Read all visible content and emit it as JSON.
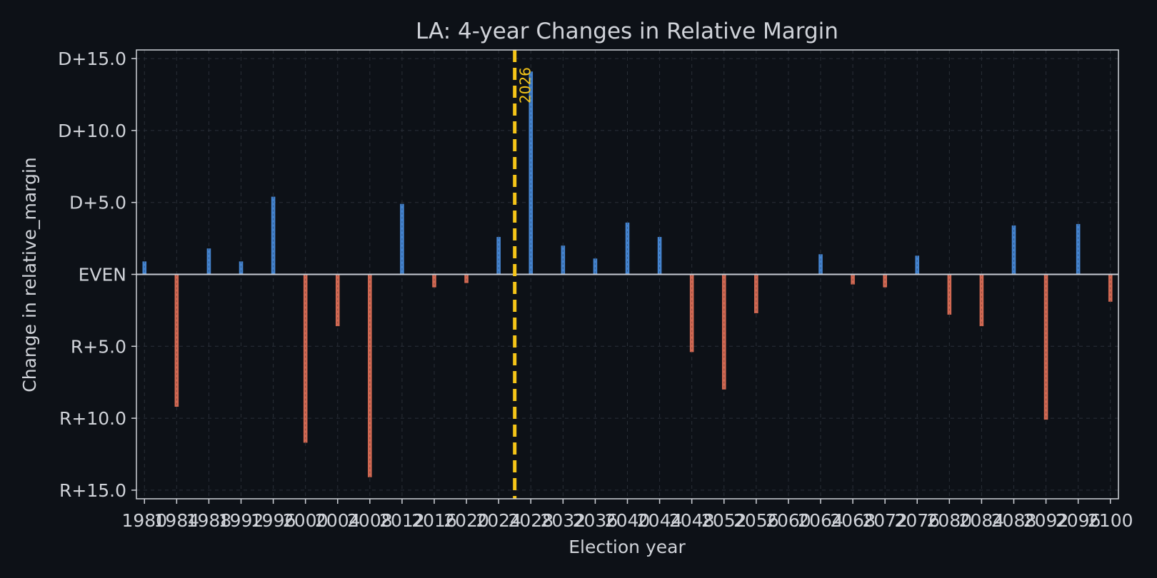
{
  "chart_data": {
    "type": "bar",
    "title": "LA: 4-year Changes in Relative Margin",
    "xlabel": "Election year",
    "ylabel": "Change in relative_margin",
    "x": [
      1980,
      1984,
      1988,
      1992,
      1996,
      2000,
      2004,
      2008,
      2012,
      2016,
      2020,
      2024,
      2028,
      2032,
      2036,
      2040,
      2044,
      2048,
      2052,
      2056,
      2060,
      2064,
      2068,
      2072,
      2076,
      2080,
      2084,
      2088,
      2092,
      2096,
      2100
    ],
    "values": [
      0.9,
      -9.2,
      1.8,
      0.9,
      5.4,
      -11.7,
      -3.6,
      -14.1,
      4.9,
      -0.9,
      -0.6,
      2.6,
      14.1,
      2.0,
      1.1,
      3.6,
      2.6,
      -5.4,
      -8.0,
      -2.7,
      0.0,
      1.4,
      -0.7,
      -0.9,
      1.3,
      -2.8,
      -3.6,
      3.4,
      -10.1,
      3.5,
      -1.9
    ],
    "xlim": [
      1979,
      2101
    ],
    "ylim": [
      -15.6,
      15.6
    ],
    "yticks": [
      15,
      10,
      5,
      0,
      -5,
      -10,
      -15
    ],
    "ytick_labels": [
      "D+15.0",
      "D+10.0",
      "D+5.0",
      "EVEN",
      "R+5.0",
      "R+10.0",
      "R+15.0"
    ],
    "xticks": [
      1980,
      1984,
      1988,
      1992,
      1996,
      2000,
      2004,
      2008,
      2012,
      2016,
      2020,
      2024,
      2028,
      2032,
      2036,
      2040,
      2044,
      2048,
      2052,
      2056,
      2060,
      2064,
      2068,
      2072,
      2076,
      2080,
      2084,
      2088,
      2092,
      2096,
      2100
    ],
    "xtick_labels": [
      "1980",
      "1984",
      "1988",
      "1992",
      "1996",
      "2000",
      "2004",
      "2008",
      "2012",
      "2016",
      "2020",
      "2024",
      "2028",
      "2032",
      "2036",
      "2040",
      "2044",
      "2048",
      "2052",
      "2056",
      "2060",
      "2064",
      "2068",
      "2072",
      "2076",
      "2080",
      "2084",
      "2088",
      "2092",
      "2096",
      "2100"
    ],
    "reference_line": {
      "x": 2026,
      "label": "2026",
      "color": "#f5c518",
      "style": "dashed"
    },
    "grid": true,
    "colors": {
      "positive": "#4a90e2",
      "negative": "#e8735a",
      "background": "#0d1117",
      "text": "#d0d3d9",
      "axis": "#d0d3d9",
      "grid": "#2a2f38",
      "zero_line": "#c8ccd4"
    }
  }
}
